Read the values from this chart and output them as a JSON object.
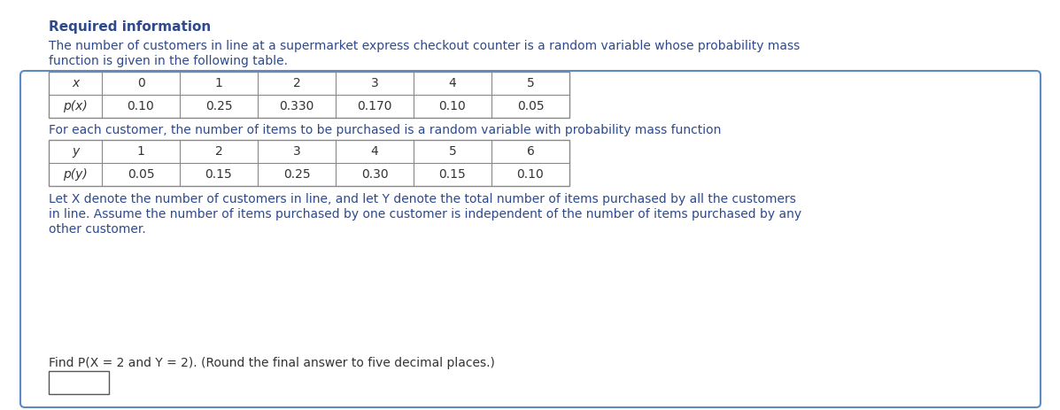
{
  "required_info_text": "Required information",
  "paragraph1_line1": "The number of customers in line at a supermarket express checkout counter is a random variable whose probability mass",
  "paragraph1_line2": "function is given in the following table.",
  "table1_row1_label": "x",
  "table1_row2_label": "p(x)",
  "table1_col_headers": [
    "0",
    "1",
    "2",
    "3",
    "4",
    "5"
  ],
  "table1_values": [
    "0.10",
    "0.25",
    "0.330",
    "0.170",
    "0.10",
    "0.05"
  ],
  "paragraph2": "For each customer, the number of items to be purchased is a random variable with probability mass function",
  "table2_row1_label": "y",
  "table2_row2_label": "p(y)",
  "table2_col_headers": [
    "1",
    "2",
    "3",
    "4",
    "5",
    "6"
  ],
  "table2_values": [
    "0.05",
    "0.15",
    "0.25",
    "0.30",
    "0.15",
    "0.10"
  ],
  "paragraph3_line1": "Let X denote the number of customers in line, and let Y denote the total number of items purchased by all the customers",
  "paragraph3_line2": "in line. Assume the number of items purchased by one customer is independent of the number of items purchased by any",
  "paragraph3_line3": "other customer.",
  "question_text": "Find P(X = 2 and Y = 2). (Round the final answer to five decimal places.)",
  "header_color": "#2E4A8B",
  "body_text_color": "#2E4A8B",
  "table_text_color": "#333333",
  "background_color": "#FFFFFF",
  "box_border_color": "#5B8AC4",
  "box_background": "#FFFFFF",
  "title_font_size": 11,
  "body_font_size": 10,
  "table_font_size": 10
}
